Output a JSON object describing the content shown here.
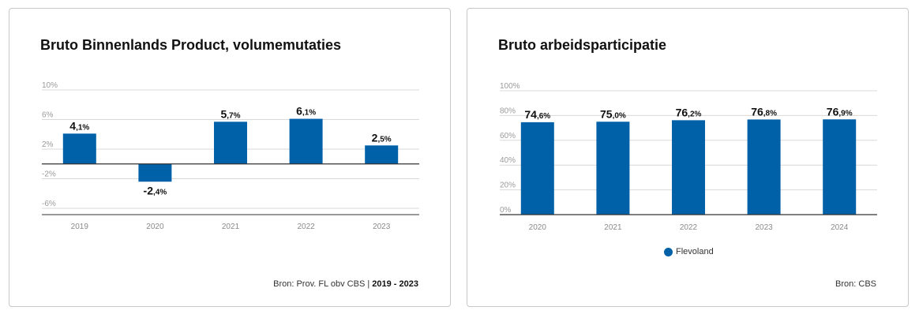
{
  "charts": [
    {
      "title": "Bruto Binnenlands Product, volumemutaties",
      "source_prefix": "Bron: Prov. FL obv CBS | ",
      "source_period_start": "2019",
      "source_period_sep": " - ",
      "source_period_end": "2023",
      "colors": {
        "bar": "#0060a8",
        "grid": "#d9d9d9",
        "axis": "#333333"
      }
    },
    {
      "title": "Bruto arbeidsparticipatie",
      "source": "Bron: CBS",
      "legend": "Flevoland",
      "colors": {
        "bar": "#0060a8",
        "grid": "#d9d9d9",
        "axis": "#333333"
      }
    }
  ],
  "chart_data": [
    {
      "type": "bar",
      "title": "Bruto Binnenlands Product, volumemutaties",
      "categories": [
        "2019",
        "2020",
        "2021",
        "2022",
        "2023"
      ],
      "values": [
        4.1,
        -2.4,
        5.7,
        6.1,
        2.5
      ],
      "value_labels": [
        {
          "main": "4",
          "dec": ",1%"
        },
        {
          "main": "-2",
          "dec": ",4%"
        },
        {
          "main": "5",
          "dec": ",7%"
        },
        {
          "main": "6",
          "dec": ",1%"
        },
        {
          "main": "2",
          "dec": ",5%"
        }
      ],
      "yticks": [
        10,
        6,
        2,
        -2,
        -6
      ],
      "ytick_labels": [
        "10%",
        "6%",
        "2%",
        "-2%",
        "-6%"
      ],
      "ylim": [
        -6,
        10
      ],
      "grid": true,
      "source": "Bron: Prov. FL obv CBS | 2019 - 2023"
    },
    {
      "type": "bar",
      "title": "Bruto arbeidsparticipatie",
      "categories": [
        "2020",
        "2021",
        "2022",
        "2023",
        "2024"
      ],
      "series": [
        {
          "name": "Flevoland",
          "values": [
            74.6,
            75.0,
            76.2,
            76.8,
            76.9
          ]
        }
      ],
      "value_labels": [
        {
          "main": "74",
          "dec": ",6%"
        },
        {
          "main": "75",
          "dec": ",0%"
        },
        {
          "main": "76",
          "dec": ",2%"
        },
        {
          "main": "76",
          "dec": ",8%"
        },
        {
          "main": "76",
          "dec": ",9%"
        }
      ],
      "yticks": [
        100,
        80,
        60,
        40,
        20,
        0
      ],
      "ytick_labels": [
        "100%",
        "80%",
        "60%",
        "40%",
        "20%",
        "0%"
      ],
      "ylim": [
        0,
        100
      ],
      "grid": true,
      "legend_position": "bottom-center",
      "source": "Bron: CBS"
    }
  ]
}
